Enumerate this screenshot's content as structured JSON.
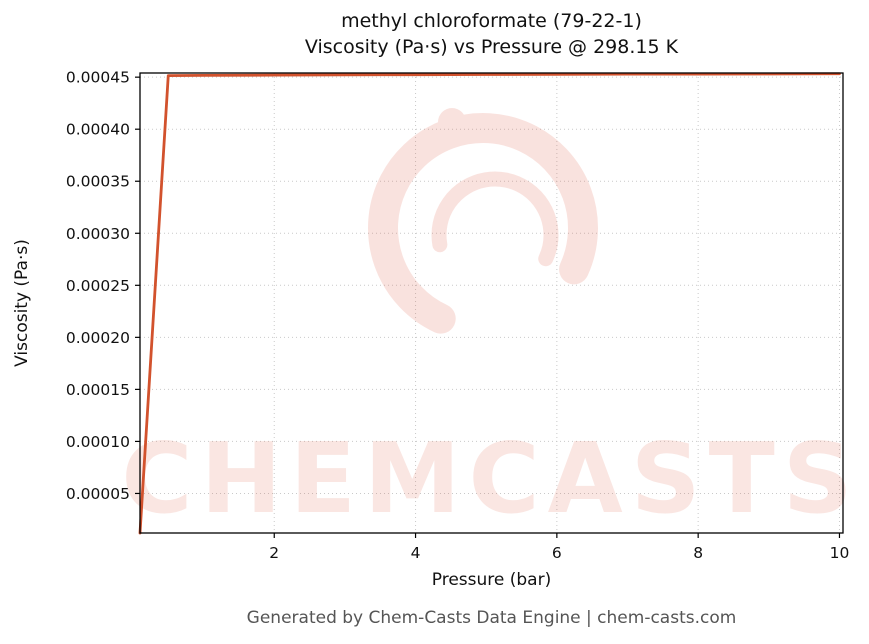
{
  "page": {
    "background": "#ffffff"
  },
  "title": {
    "line1": "methyl chloroformate (79-22-1)",
    "line2": "Viscosity (Pa·s) vs Pressure @ 298.15 K"
  },
  "footer": {
    "text": "Generated by Chem-Casts Data Engine | chem-casts.com"
  },
  "watermark": {
    "text": "CHEMCASTS",
    "color": "#e0543a",
    "text_opacity": 0.15,
    "logo_opacity": 0.16
  },
  "chart_data": {
    "type": "line",
    "title": "methyl chloroformate (79-22-1) — Viscosity (Pa·s) vs Pressure @ 298.15 K",
    "xlabel": "Pressure (bar)",
    "ylabel": "Viscosity (Pa·s)",
    "x": [
      0.1,
      0.5,
      1,
      2,
      3,
      4,
      5,
      6,
      7,
      8,
      9,
      10
    ],
    "series": [
      {
        "name": "viscosity",
        "color": "#d2522d",
        "values": [
          1.2e-05,
          0.0004515,
          0.0004517,
          0.000452,
          0.0004522,
          0.0004524,
          0.0004526,
          0.0004527,
          0.0004529,
          0.000453,
          0.0004531,
          0.0004533
        ]
      }
    ],
    "xlim": [
      0.1,
      10.05
    ],
    "ylim": [
      1.2e-05,
      0.000454
    ],
    "xticks": [
      2,
      4,
      6,
      8,
      10
    ],
    "xtick_labels": [
      "2",
      "4",
      "6",
      "8",
      "10"
    ],
    "yticks": [
      5e-05,
      0.0001,
      0.00015,
      0.0002,
      0.00025,
      0.0003,
      0.00035,
      0.0004,
      0.00045
    ],
    "ytick_labels": [
      "0.00005",
      "0.00010",
      "0.00015",
      "0.00020",
      "0.00025",
      "0.00030",
      "0.00035",
      "0.00040",
      "0.00045"
    ],
    "grid": true,
    "grid_style": "dotted",
    "legend": "none",
    "temperature_K": "298.15"
  }
}
